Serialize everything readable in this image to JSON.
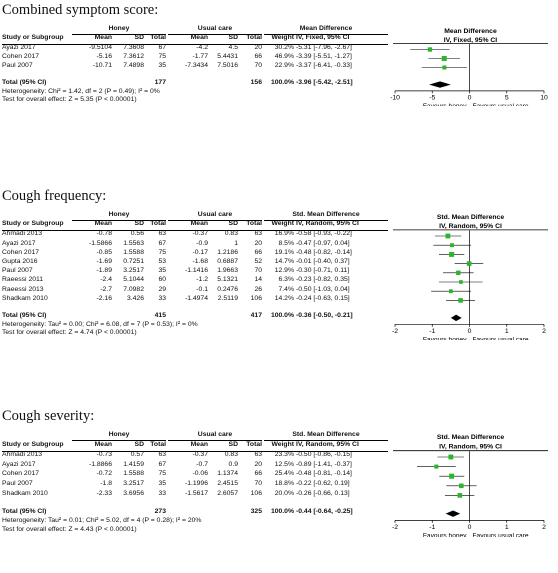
{
  "chart_data": [
    {
      "type": "forest",
      "title": "Combined symptom score:",
      "group_labels": {
        "experimental": "Honey",
        "control": "Usual care"
      },
      "effect_header": "Mean Difference",
      "effect_subheader": "IV, Fixed, 95% CI",
      "columns": [
        "Study or Subgroup",
        "Mean",
        "SD",
        "Total",
        "Mean",
        "SD",
        "Total",
        "Weight",
        "IV, Fixed, 95% CI"
      ],
      "studies": [
        {
          "name": "Ayazi 2017",
          "m1": "-9.5104",
          "sd1": "7.3608",
          "n1": "67",
          "m2": "-4.2",
          "sd2": "4.5",
          "n2": "20",
          "weight": "30.2%",
          "ci_text": "-5.31 [-7.96, -2.67]",
          "est": -5.31,
          "lo": -7.96,
          "hi": -2.67,
          "w": 30.2
        },
        {
          "name": "Cohen 2017",
          "m1": "-5.16",
          "sd1": "7.3612",
          "n1": "75",
          "m2": "-1.77",
          "sd2": "5.4431",
          "n2": "66",
          "weight": "46.9%",
          "ci_text": "-3.39 [-5.51, -1.27]",
          "est": -3.39,
          "lo": -5.51,
          "hi": -1.27,
          "w": 46.9
        },
        {
          "name": "Paul 2007",
          "m1": "-10.71",
          "sd1": "7.4898",
          "n1": "35",
          "m2": "-7.3434",
          "sd2": "7.5016",
          "n2": "70",
          "weight": "22.9%",
          "ci_text": "-3.37 [-6.41, -0.33]",
          "est": -3.37,
          "lo": -6.41,
          "hi": -0.33,
          "w": 22.9
        }
      ],
      "total": {
        "label": "Total (95% CI)",
        "n1": "177",
        "n2": "156",
        "weight": "100.0%",
        "ci_text": "-3.96 [-5.42, -2.51]",
        "est": -3.96,
        "lo": -5.42,
        "hi": -2.51
      },
      "heterogeneity": "Heterogeneity: Chi² = 1.42, df = 2 (P = 0.49); I² = 0%",
      "overall_effect": "Test for overall effect: Z = 5.35 (P < 0.00001)",
      "xlim": [
        -10,
        10
      ],
      "ticks": [
        -10,
        -5,
        0,
        5,
        10
      ],
      "tick_labels": [
        "-10",
        "-5",
        "0",
        "5",
        "10"
      ],
      "favours_left": "Favours honey",
      "favours_right": "Favours usual care"
    },
    {
      "type": "forest",
      "title": "Cough frequency:",
      "group_labels": {
        "experimental": "Honey",
        "control": "Usual care"
      },
      "effect_header": "Std. Mean Difference",
      "effect_subheader": "IV, Random, 95% CI",
      "columns": [
        "Study or Subgroup",
        "Mean",
        "SD",
        "Total",
        "Mean",
        "SD",
        "Total",
        "Weight",
        "IV, Random, 95% CI"
      ],
      "studies": [
        {
          "name": "Ahmadi 2013",
          "m1": "-0.78",
          "sd1": "0.56",
          "n1": "63",
          "m2": "-0.37",
          "sd2": "0.83",
          "n2": "63",
          "weight": "16.9%",
          "ci_text": "-0.58 [-0.93, -0.22]",
          "est": -0.58,
          "lo": -0.93,
          "hi": -0.22,
          "w": 16.9
        },
        {
          "name": "Ayazi 2017",
          "m1": "-1.5866",
          "sd1": "1.5563",
          "n1": "67",
          "m2": "-0.9",
          "sd2": "1",
          "n2": "20",
          "weight": "8.5%",
          "ci_text": "-0.47 [-0.97, 0.04]",
          "est": -0.47,
          "lo": -0.97,
          "hi": 0.04,
          "w": 8.5
        },
        {
          "name": "Cohen 2017",
          "m1": "-0.85",
          "sd1": "1.5588",
          "n1": "75",
          "m2": "-0.17",
          "sd2": "1.2186",
          "n2": "66",
          "weight": "19.1%",
          "ci_text": "-0.48 [-0.82, -0.14]",
          "est": -0.48,
          "lo": -0.82,
          "hi": -0.14,
          "w": 19.1
        },
        {
          "name": "Gupta 2016",
          "m1": "-1.69",
          "sd1": "0.7251",
          "n1": "53",
          "m2": "-1.68",
          "sd2": "0.6887",
          "n2": "52",
          "weight": "14.7%",
          "ci_text": "-0.01 [-0.40, 0.37]",
          "est": -0.01,
          "lo": -0.4,
          "hi": 0.37,
          "w": 14.7
        },
        {
          "name": "Paul 2007",
          "m1": "-1.89",
          "sd1": "3.2517",
          "n1": "35",
          "m2": "-1.1416",
          "sd2": "1.9663",
          "n2": "70",
          "weight": "12.9%",
          "ci_text": "-0.30 [-0.71, 0.11]",
          "est": -0.3,
          "lo": -0.71,
          "hi": 0.11,
          "w": 12.9
        },
        {
          "name": "Raeessi 2011",
          "m1": "-2.4",
          "sd1": "5.1044",
          "n1": "60",
          "m2": "-1.2",
          "sd2": "5.1321",
          "n2": "14",
          "weight": "6.3%",
          "ci_text": "-0.23 [-0.82, 0.35]",
          "est": -0.23,
          "lo": -0.82,
          "hi": 0.35,
          "w": 6.3
        },
        {
          "name": "Raeessi 2013",
          "m1": "-2.7",
          "sd1": "7.0982",
          "n1": "29",
          "m2": "-0.1",
          "sd2": "0.2476",
          "n2": "26",
          "weight": "7.4%",
          "ci_text": "-0.50 [-1.03, 0.04]",
          "est": -0.5,
          "lo": -1.03,
          "hi": 0.04,
          "w": 7.4
        },
        {
          "name": "Shadkam 2010",
          "m1": "-2.16",
          "sd1": "3.426",
          "n1": "33",
          "m2": "-1.4974",
          "sd2": "2.5119",
          "n2": "106",
          "weight": "14.2%",
          "ci_text": "-0.24 [-0.63, 0.15]",
          "est": -0.24,
          "lo": -0.63,
          "hi": 0.15,
          "w": 14.2
        }
      ],
      "total": {
        "label": "Total (95% CI)",
        "n1": "415",
        "n2": "417",
        "weight": "100.0%",
        "ci_text": "-0.36 [-0.50, -0.21]",
        "est": -0.36,
        "lo": -0.5,
        "hi": -0.21
      },
      "heterogeneity": "Heterogeneity: Tau² = 0.00; Chi² = 6.08, df = 7 (P = 0.53); I² = 0%",
      "overall_effect": "Test for overall effect: Z = 4.74 (P < 0.00001)",
      "xlim": [
        -2,
        2
      ],
      "ticks": [
        -2,
        -1,
        0,
        1,
        2
      ],
      "tick_labels": [
        "-2",
        "-1",
        "0",
        "1",
        "2"
      ],
      "favours_left": "Favours honey",
      "favours_right": "Favours usual care"
    },
    {
      "type": "forest",
      "title": "Cough severity:",
      "group_labels": {
        "experimental": "Honey",
        "control": "Usual care"
      },
      "effect_header": "Std. Mean Difference",
      "effect_subheader": "IV, Random, 95% CI",
      "columns": [
        "Study or Subgroup",
        "Mean",
        "SD",
        "Total",
        "Mean",
        "SD",
        "Total",
        "Weight",
        "IV, Random, 95% CI"
      ],
      "studies": [
        {
          "name": "Ahmadi 2013",
          "m1": "-0.73",
          "sd1": "0.57",
          "n1": "63",
          "m2": "-0.37",
          "sd2": "0.83",
          "n2": "63",
          "weight": "23.3%",
          "ci_text": "-0.50 [-0.86, -0.15]",
          "est": -0.5,
          "lo": -0.86,
          "hi": -0.15,
          "w": 23.3
        },
        {
          "name": "Ayazi 2017",
          "m1": "-1.8866",
          "sd1": "1.4159",
          "n1": "67",
          "m2": "-0.7",
          "sd2": "0.9",
          "n2": "20",
          "weight": "12.5%",
          "ci_text": "-0.89 [-1.41, -0.37]",
          "est": -0.89,
          "lo": -1.41,
          "hi": -0.37,
          "w": 12.5
        },
        {
          "name": "Cohen 2017",
          "m1": "-0.72",
          "sd1": "1.5588",
          "n1": "75",
          "m2": "-0.06",
          "sd2": "1.1374",
          "n2": "66",
          "weight": "25.4%",
          "ci_text": "-0.48 [-0.81, -0.14]",
          "est": -0.48,
          "lo": -0.81,
          "hi": -0.14,
          "w": 25.4
        },
        {
          "name": "Paul 2007",
          "m1": "-1.8",
          "sd1": "3.2517",
          "n1": "35",
          "m2": "-1.1996",
          "sd2": "2.4515",
          "n2": "70",
          "weight": "18.8%",
          "ci_text": "-0.22 [-0.62, 0.19]",
          "est": -0.22,
          "lo": -0.62,
          "hi": 0.19,
          "w": 18.8
        },
        {
          "name": "Shadkam 2010",
          "m1": "-2.33",
          "sd1": "3.6956",
          "n1": "33",
          "m2": "-1.5617",
          "sd2": "2.6057",
          "n2": "106",
          "weight": "20.0%",
          "ci_text": "-0.26 [-0.66, 0.13]",
          "est": -0.26,
          "lo": -0.66,
          "hi": 0.13,
          "w": 20.0
        }
      ],
      "total": {
        "label": "Total (95% CI)",
        "n1": "273",
        "n2": "325",
        "weight": "100.0%",
        "ci_text": "-0.44 [-0.64, -0.25]",
        "est": -0.44,
        "lo": -0.64,
        "hi": -0.25
      },
      "heterogeneity": "Heterogeneity: Tau² = 0.01; Chi² = 5.02, df = 4 (P = 0.28); I² = 20%",
      "overall_effect": "Test for overall effect: Z = 4.43 (P < 0.00001)",
      "xlim": [
        -2,
        2
      ],
      "ticks": [
        -2,
        -1,
        0,
        1,
        2
      ],
      "tick_labels": [
        "-2",
        "-1",
        "0",
        "1",
        "2"
      ],
      "favours_left": "Favours honey",
      "favours_right": "Favours usual care"
    }
  ],
  "colors": {
    "marker": "#2bb52b",
    "diamond": "#000000",
    "line": "#000000"
  }
}
